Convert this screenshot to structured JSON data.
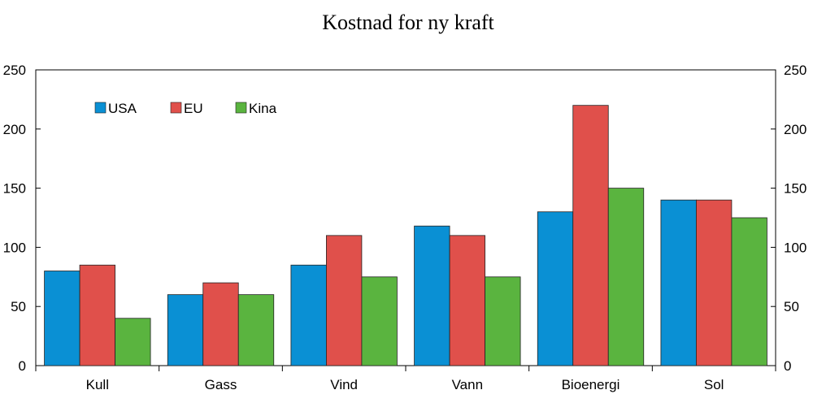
{
  "chart_data": {
    "type": "bar",
    "title": "Kostnad for ny kraft",
    "categories": [
      "Kull",
      "Gass",
      "Vind",
      "Vann",
      "Bioenergi",
      "Sol"
    ],
    "series": [
      {
        "name": "USA",
        "color": "#0a90d4",
        "values": [
          80,
          60,
          85,
          118,
          130,
          140
        ]
      },
      {
        "name": "EU",
        "color": "#e0504b",
        "values": [
          85,
          70,
          110,
          110,
          220,
          140
        ]
      },
      {
        "name": "Kina",
        "color": "#5ab43f",
        "values": [
          40,
          60,
          75,
          75,
          150,
          125
        ]
      }
    ],
    "ylim": [
      0,
      250
    ],
    "yticks": [
      0,
      50,
      100,
      150,
      200,
      250
    ],
    "secondary_y_axis": true,
    "grid": false,
    "legend_position": "top-left"
  }
}
